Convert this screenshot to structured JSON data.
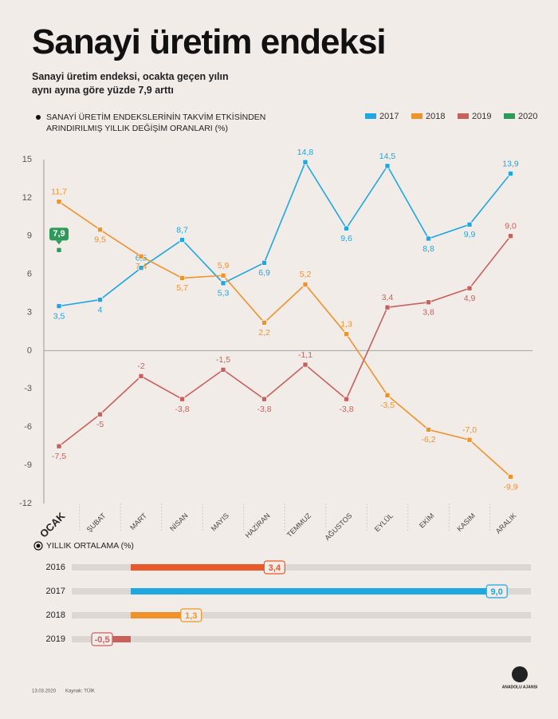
{
  "title": "Sanayi üretim endeksi",
  "subtitle": "Sanayi üretim endeksi, ocakta geçen yılın aynı ayına göre yüzde 7,9 arttı",
  "chart_data": [
    {
      "type": "line",
      "title": "SANAYİ ÜRETİM ENDEKSLERİNİN TAKVİM ETKİSİNDEN ARINDIRILMIŞ YILLIK DEĞİŞİM ORANLARI (%)",
      "categories": [
        "OCAK",
        "ŞUBAT",
        "MART",
        "NİSAN",
        "MAYIS",
        "HAZİRAN",
        "TEMMUZ",
        "AĞUSTOS",
        "EYLÜL",
        "EKİM",
        "KASIM",
        "ARALIK"
      ],
      "series": [
        {
          "name": "2017",
          "color": "#1ea7e0",
          "values": [
            3.5,
            4,
            6.5,
            8.7,
            5.3,
            6.9,
            14.8,
            9.6,
            14.5,
            8.8,
            9.9,
            13.9
          ],
          "value_labels": [
            "3,5",
            "4",
            "6,5",
            "8,7",
            "5,3",
            "6,9",
            "14,8",
            "9,6",
            "14,5",
            "8,8",
            "9,9",
            "13,9"
          ]
        },
        {
          "name": "2018",
          "color": "#f0922a",
          "values": [
            11.7,
            9.5,
            7.4,
            5.7,
            5.9,
            2.2,
            5.2,
            1.3,
            -3.5,
            -6.2,
            -7.0,
            -9.9
          ],
          "value_labels": [
            "11,7",
            "9,5",
            "7,4",
            "5,7",
            "5,9",
            "2,2",
            "5,2",
            "1,3",
            "-3,5",
            "-6,2",
            "-7,0",
            "-9,9"
          ]
        },
        {
          "name": "2019",
          "color": "#c8605c",
          "values": [
            -7.5,
            -5,
            -2,
            -3.8,
            -1.5,
            -3.8,
            -1.1,
            -3.8,
            3.4,
            3.8,
            4.9,
            9.0
          ],
          "value_labels": [
            "-7,5",
            "-5",
            "-2",
            "-3,8",
            "-1,5",
            "-3,8",
            "-1,1",
            "-3,8",
            "3,4",
            "3,8",
            "4,9",
            "9,0"
          ]
        },
        {
          "name": "2020",
          "color": "#2e9a5a",
          "values": [
            7.9,
            null,
            null,
            null,
            null,
            null,
            null,
            null,
            null,
            null,
            null,
            null
          ],
          "value_labels": [
            "7,9",
            null,
            null,
            null,
            null,
            null,
            null,
            null,
            null,
            null,
            null,
            null
          ]
        }
      ],
      "ylim": [
        -12,
        15
      ],
      "yticks": [
        15,
        12,
        9,
        6,
        3,
        0,
        -3,
        -6,
        -9,
        -12
      ],
      "grid": false,
      "legend": "top-right"
    },
    {
      "type": "bar",
      "orientation": "horizontal",
      "title": "YILLIK ORTALAMA (%)",
      "categories": [
        "2016",
        "2017",
        "2018",
        "2019"
      ],
      "values": [
        3.4,
        9.0,
        1.3,
        -0.5
      ],
      "value_labels": [
        "3,4",
        "9,0",
        "1,3",
        "-0,5"
      ],
      "colors": [
        "#e8582a",
        "#1ea7e0",
        "#f0922a",
        "#c8605c"
      ]
    }
  ],
  "footer": {
    "date": "13.03.2020",
    "source": "Kaynak: TÜİK"
  },
  "logo": "ANADOLU AJANSI"
}
